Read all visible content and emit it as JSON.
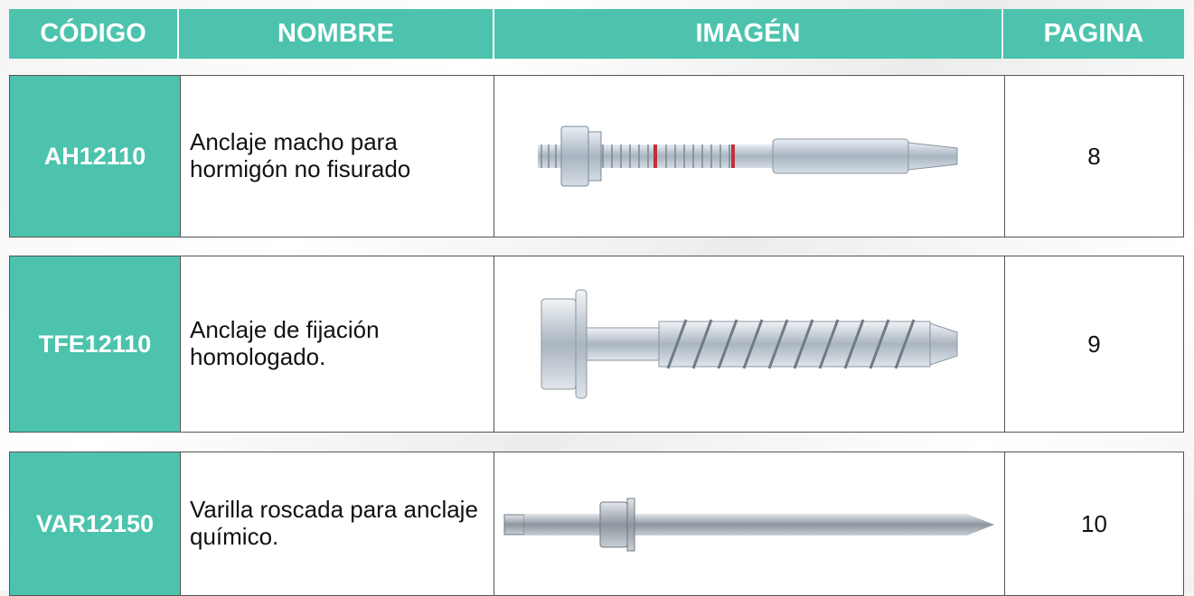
{
  "header": {
    "columns": [
      "CÓDIGO",
      "NOMBRE",
      "IMAGÉN",
      "PAGINA"
    ]
  },
  "table": {
    "rows": [
      [
        "AH12110",
        "Anclaje macho para hormigón no fisurado",
        8
      ],
      [
        "TFE12110",
        "Anclaje de fijación homologado.",
        9
      ],
      [
        "VAR12150",
        "Varilla roscada para anclaje químico.",
        10
      ]
    ]
  }
}
